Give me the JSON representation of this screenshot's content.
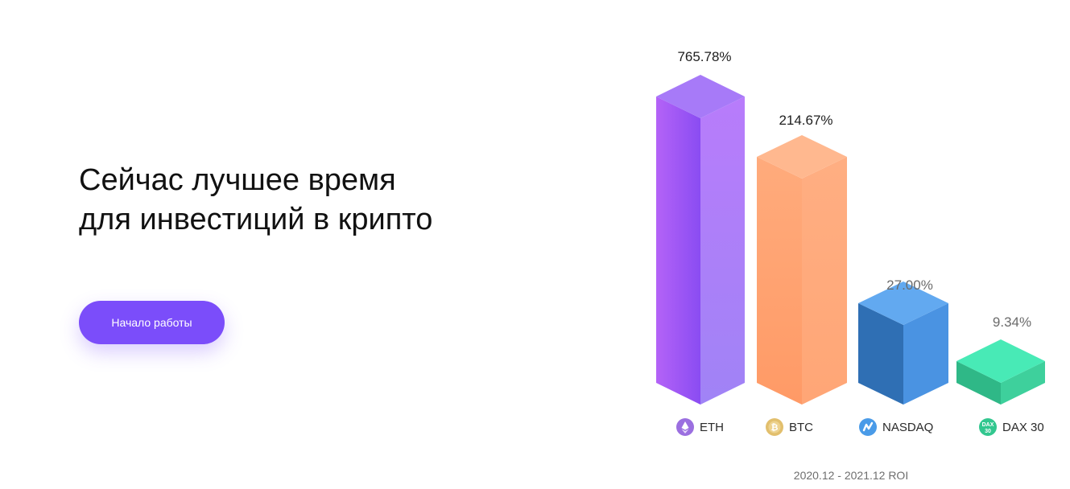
{
  "hero": {
    "title": "Сейчас лучшее время для инвестиций в крипто",
    "cta_label": "Начало работы"
  },
  "chart_data": {
    "type": "bar",
    "categories": [
      "ETH",
      "BTC",
      "NASDAQ",
      "DAX 30"
    ],
    "values": [
      765.78,
      214.67,
      27.0,
      9.34
    ],
    "value_labels": [
      "765.78%",
      "214.67%",
      "27.00%",
      "9.34%"
    ],
    "icons": [
      "ethereum-icon",
      "bitcoin-icon",
      "nasdaq-icon",
      "dax-icon"
    ],
    "icon_text": [
      "",
      "",
      "",
      "DAX 30"
    ],
    "colors": [
      "#9a68f8",
      "#ffa575",
      "#4a93e2",
      "#3fd9a6"
    ],
    "footer": "2020.12 - 2021.12 ROI",
    "title": "",
    "xlabel": "",
    "ylabel": "",
    "grid": false,
    "legend": "bottom"
  }
}
